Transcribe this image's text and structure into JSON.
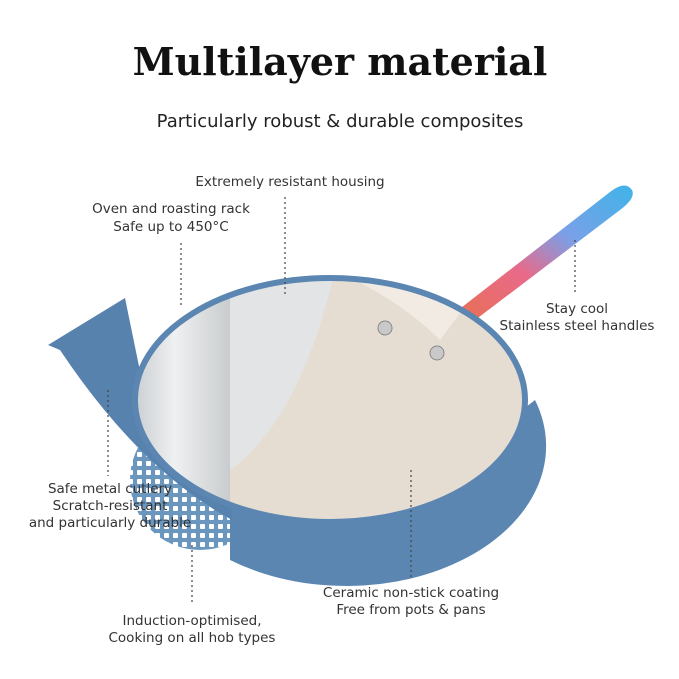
{
  "header": {
    "title": "Multilayer material",
    "subtitle": "Particularly robust & durable composites"
  },
  "callouts": [
    {
      "lines": [
        "Extremely resistant housing"
      ]
    },
    {
      "lines": [
        "Oven and roasting rack",
        "Safe up to 450°C"
      ]
    },
    {
      "lines": [
        "Stay cool",
        "Stainless steel handles"
      ]
    },
    {
      "lines": [
        "Safe metal cutlery",
        "Scratch-resistant",
        "and particularly durable"
      ]
    },
    {
      "lines": [
        "Ceramic non-stick coating",
        "Free from pots & pans"
      ]
    },
    {
      "lines": [
        "Induction-optimised,",
        "Cooking on all hob types"
      ]
    }
  ]
}
